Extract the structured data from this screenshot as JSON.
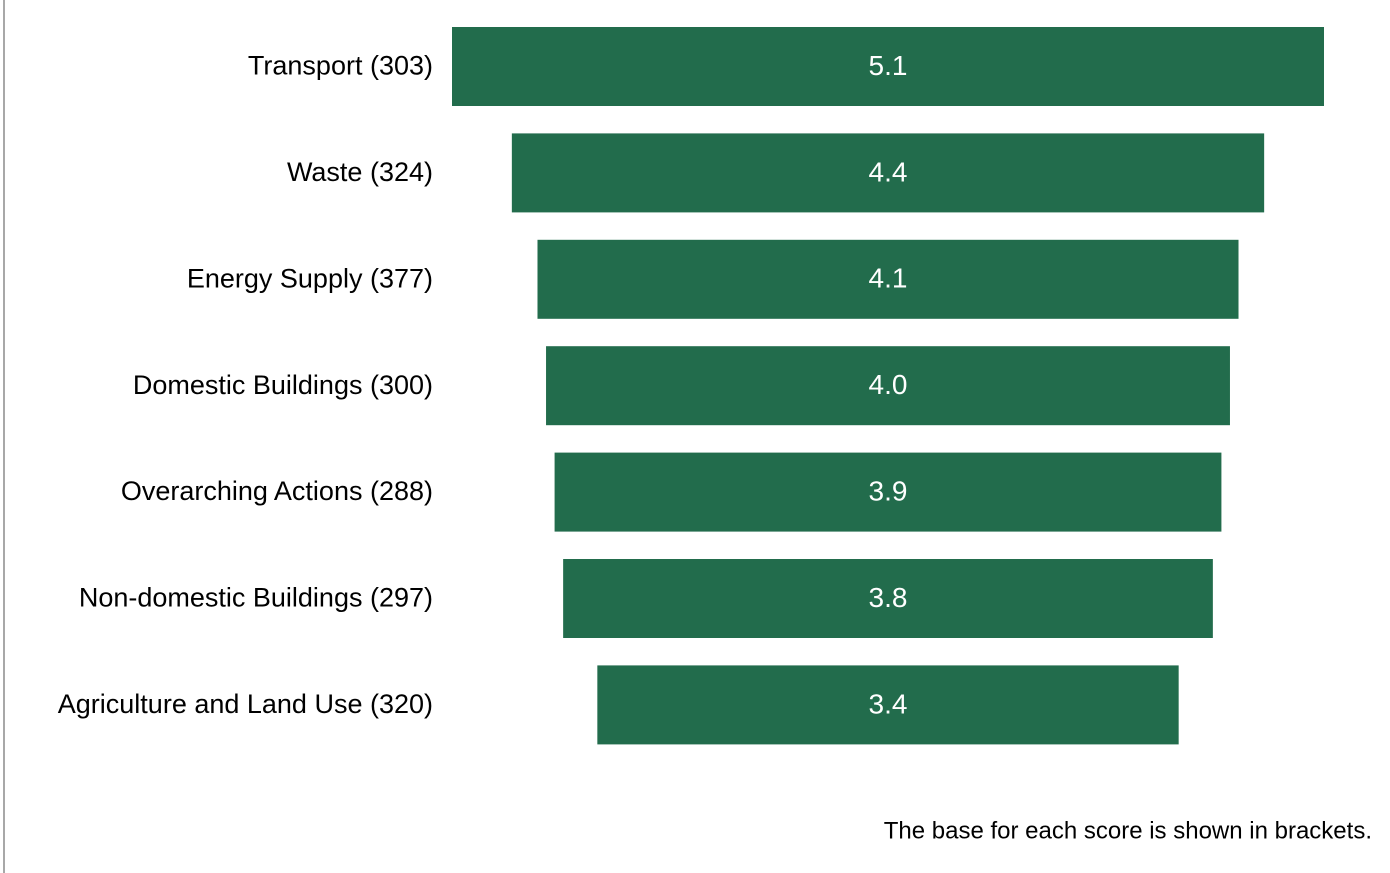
{
  "chart_data": {
    "type": "funnel",
    "categories": [
      "Transport (303)",
      "Waste (324)",
      "Energy Supply (377)",
      "Domestic Buildings (300)",
      "Overarching Actions (288)",
      "Non-domestic Buildings (297)",
      "Agriculture and Land Use (320)"
    ],
    "values": [
      5.1,
      4.4,
      4.1,
      4.0,
      3.9,
      3.8,
      3.4
    ],
    "value_labels": [
      "5.1",
      "4.4",
      "4.1",
      "4.0",
      "3.9",
      "3.8",
      "3.4"
    ],
    "color": "#226c4c",
    "note": "The base for each score is shown in brackets."
  }
}
